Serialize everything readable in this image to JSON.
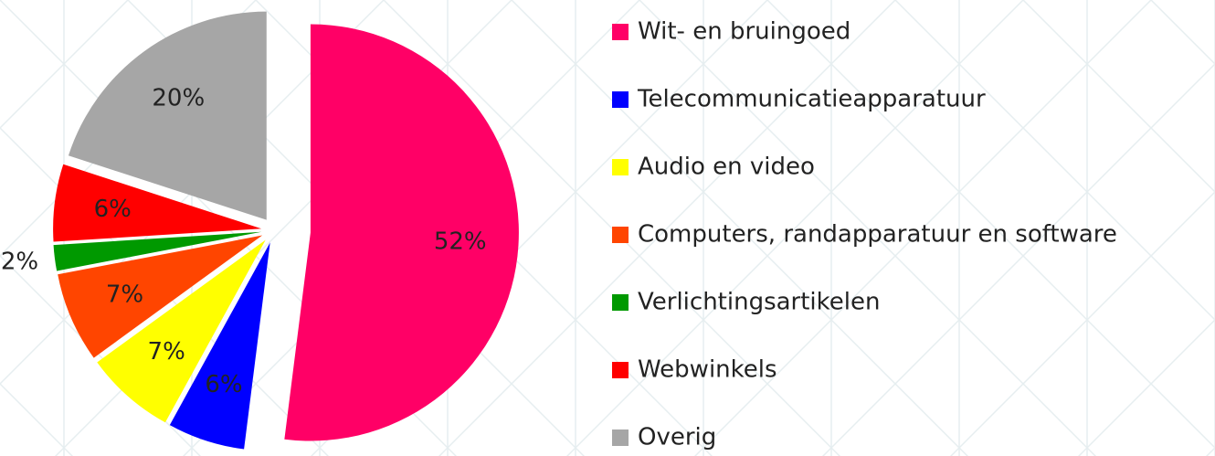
{
  "chart_data": {
    "type": "pie",
    "categories": [
      "Wit- en bruingoed",
      "Telecommunicatieapparatuur",
      "Audio en video",
      "Computers, randapparatuur en software",
      "Verlichtingsartikelen",
      "Webwinkels",
      "Overig"
    ],
    "values": [
      52,
      6,
      7,
      7,
      2,
      6,
      20
    ],
    "value_labels": [
      "52%",
      "6%",
      "7%",
      "7%",
      "2%",
      "6%",
      "20%"
    ],
    "colors": [
      "#ff0066",
      "#0000ff",
      "#ffff00",
      "#ff4500",
      "#009900",
      "#ff0000",
      "#a6a6a6"
    ],
    "legend": "right"
  }
}
